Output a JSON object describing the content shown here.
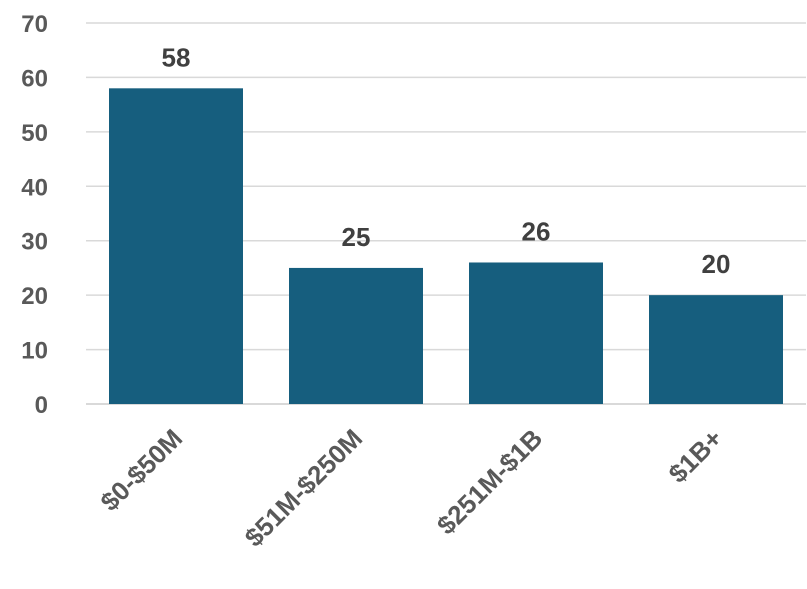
{
  "chart_data": {
    "type": "bar",
    "title": "",
    "xlabel": "",
    "ylabel": "",
    "categories": [
      "$0-$50M",
      "$51M-$250M",
      "$251M-$1B",
      "$1B+"
    ],
    "values": [
      58,
      25,
      26,
      20
    ],
    "ylim": [
      0,
      70
    ],
    "yticks": [
      0,
      10,
      20,
      30,
      40,
      50,
      60,
      70
    ],
    "grid": true,
    "legend": "none",
    "data_labels": true,
    "colors": {
      "bar": "#165e7e",
      "gridline": "#d9d9d9"
    }
  }
}
